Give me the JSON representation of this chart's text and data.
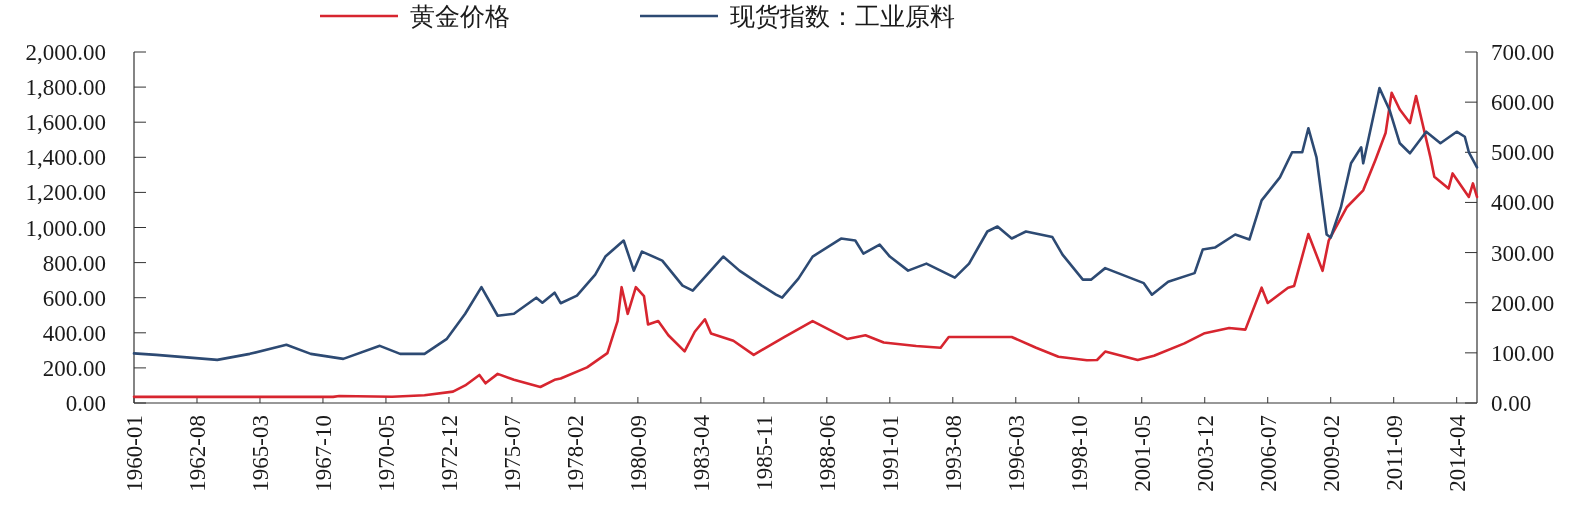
{
  "chart_data": {
    "type": "line",
    "legend": "top",
    "xlim": [
      "1960-01",
      "2015-02"
    ],
    "xticks": [
      "1960-01",
      "1962-08",
      "1965-03",
      "1967-10",
      "1970-05",
      "1972-12",
      "1975-07",
      "1978-02",
      "1980-09",
      "1983-04",
      "1985-11",
      "1988-06",
      "1991-01",
      "1993-08",
      "1996-03",
      "1998-10",
      "2001-05",
      "2003-12",
      "2006-07",
      "2009-02",
      "2011-09",
      "2014-04"
    ],
    "ylim": [
      0,
      2000
    ],
    "yticks": [
      {
        "value": 0,
        "label": "0.00"
      },
      {
        "value": 200,
        "label": "200.00"
      },
      {
        "value": 400,
        "label": "400.00"
      },
      {
        "value": 600,
        "label": "600.00"
      },
      {
        "value": 800,
        "label": "800.00"
      },
      {
        "value": 1000,
        "label": "1,000.00"
      },
      {
        "value": 1200,
        "label": "1,200.00"
      },
      {
        "value": 1400,
        "label": "1,400.00"
      },
      {
        "value": 1600,
        "label": "1,600.00"
      },
      {
        "value": 1800,
        "label": "1,800.00"
      },
      {
        "value": 2000,
        "label": "2,000.00"
      }
    ],
    "y2lim": [
      0,
      700
    ],
    "y2ticks": [
      {
        "value": 0,
        "label": "0.00"
      },
      {
        "value": 100,
        "label": "100.00"
      },
      {
        "value": 200,
        "label": "200.00"
      },
      {
        "value": 300,
        "label": "300.00"
      },
      {
        "value": 400,
        "label": "400.00"
      },
      {
        "value": 500,
        "label": "500.00"
      },
      {
        "value": 600,
        "label": "600.00"
      },
      {
        "value": 700,
        "label": "700.00"
      }
    ],
    "series": [
      {
        "name": "黄金价格",
        "color": "#d7252f",
        "x": [
          "1960-01",
          "1968-03",
          "1968-06",
          "1970-08",
          "1971-12",
          "1973-02",
          "1973-08",
          "1974-03",
          "1974-06",
          "1974-12",
          "1975-08",
          "1976-09",
          "1977-04",
          "1977-07",
          "1978-08",
          "1979-06",
          "1979-11",
          "1980-01",
          "1980-04",
          "1980-08",
          "1980-12",
          "1981-02",
          "1981-07",
          "1981-12",
          "1982-08",
          "1983-01",
          "1983-06",
          "1983-09",
          "1984-08",
          "1985-06",
          "1986-09",
          "1987-11",
          "1989-04",
          "1990-01",
          "1990-10",
          "1992-02",
          "1993-02",
          "1993-06",
          "1996-01",
          "1997-01",
          "1997-12",
          "1999-02",
          "1999-07",
          "1999-11",
          "2001-03",
          "2001-11",
          "2003-02",
          "2003-12",
          "2004-12",
          "2005-08",
          "2006-04",
          "2006-07",
          "2007-05",
          "2007-08",
          "2008-03",
          "2008-10",
          "2009-01",
          "2009-10",
          "2010-06",
          "2010-12",
          "2011-05",
          "2011-08",
          "2011-12",
          "2012-05",
          "2012-08",
          "2013-03",
          "2013-05",
          "2013-12",
          "2014-02",
          "2014-10",
          "2014-12",
          "2015-02"
        ],
        "values": [
          35,
          35,
          40,
          36,
          44,
          65,
          100,
          160,
          112,
          166,
          132,
          91,
          132,
          140,
          203,
          284,
          467,
          660,
          508,
          660,
          609,
          447,
          467,
          386,
          294,
          406,
          477,
          396,
          355,
          274,
          376,
          467,
          365,
          386,
          345,
          325,
          315,
          376,
          376,
          315,
          264,
          244,
          245,
          293,
          245,
          269,
          340,
          398,
          427,
          418,
          657,
          570,
          657,
          667,
          963,
          753,
          925,
          1117,
          1212,
          1385,
          1538,
          1768,
          1672,
          1595,
          1749,
          1404,
          1289,
          1222,
          1308,
          1174,
          1251,
          1174
        ]
      },
      {
        "name": "现货指数：工业原料",
        "color": "#2d4a73",
        "axis": "y2",
        "x": [
          "1960-01",
          "1960-12",
          "1963-06",
          "1964-10",
          "1966-04",
          "1967-04",
          "1968-08",
          "1970-02",
          "1970-12",
          "1971-12",
          "1972-11",
          "1973-08",
          "1974-04",
          "1974-12",
          "1975-08",
          "1976-07",
          "1976-10",
          "1977-04",
          "1977-07",
          "1978-03",
          "1978-12",
          "1979-05",
          "1980-02",
          "1980-07",
          "1980-11",
          "1981-09",
          "1982-07",
          "1982-12",
          "1984-03",
          "1984-11",
          "1985-10",
          "1986-05",
          "1986-08",
          "1987-04",
          "1987-11",
          "1989-01",
          "1989-08",
          "1989-12",
          "1990-08",
          "1991-01",
          "1991-10",
          "1992-07",
          "1993-09",
          "1994-04",
          "1995-01",
          "1995-06",
          "1996-01",
          "1996-08",
          "1997-09",
          "1998-02",
          "1998-12",
          "1999-04",
          "1999-11",
          "2001-06",
          "2001-10",
          "2002-06",
          "2003-07",
          "2003-11",
          "2004-05",
          "2005-03",
          "2005-10",
          "2006-04",
          "2007-01",
          "2007-07",
          "2007-12",
          "2008-03",
          "2008-07",
          "2008-12",
          "2009-02",
          "2009-07",
          "2009-12",
          "2010-05",
          "2010-06",
          "2011-02",
          "2011-07",
          "2011-12",
          "2012-05",
          "2013-01",
          "2013-08",
          "2014-04",
          "2014-08",
          "2014-10",
          "2015-02"
        ],
        "values": [
          99,
          96,
          86,
          98,
          116,
          98,
          88,
          114,
          98,
          98,
          128,
          178,
          231,
          174,
          178,
          210,
          200,
          220,
          199,
          214,
          256,
          292,
          324,
          264,
          302,
          284,
          234,
          224,
          292,
          264,
          234,
          216,
          210,
          248,
          292,
          328,
          324,
          298,
          316,
          292,
          264,
          278,
          250,
          278,
          342,
          352,
          328,
          342,
          331,
          296,
          246,
          246,
          269,
          239,
          216,
          242,
          259,
          306,
          310,
          336,
          326,
          404,
          450,
          500,
          500,
          548,
          490,
          336,
          330,
          390,
          478,
          510,
          478,
          628,
          584,
          518,
          498,
          541,
          518,
          541,
          531,
          500,
          470
        ]
      }
    ]
  }
}
